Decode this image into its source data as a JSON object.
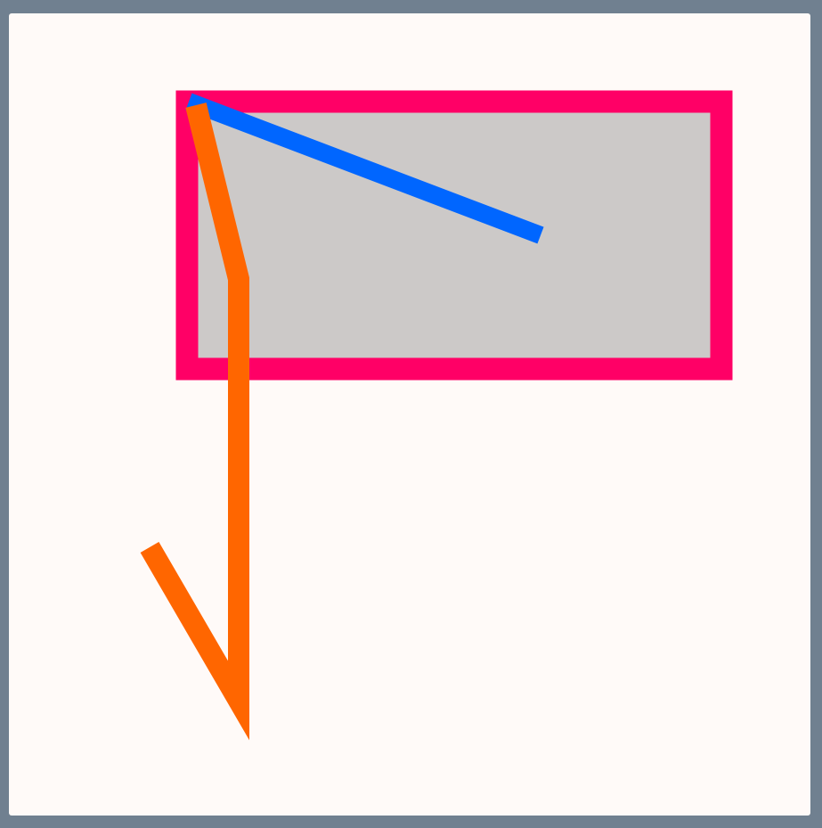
{
  "colors": {
    "background": "#708090",
    "canvas": "#fffaf8",
    "rectangle_fill": "#ccc9c8",
    "rectangle_stroke": "#ff0066",
    "blue_line": "#0066ff",
    "orange_path": "#ff6600"
  }
}
